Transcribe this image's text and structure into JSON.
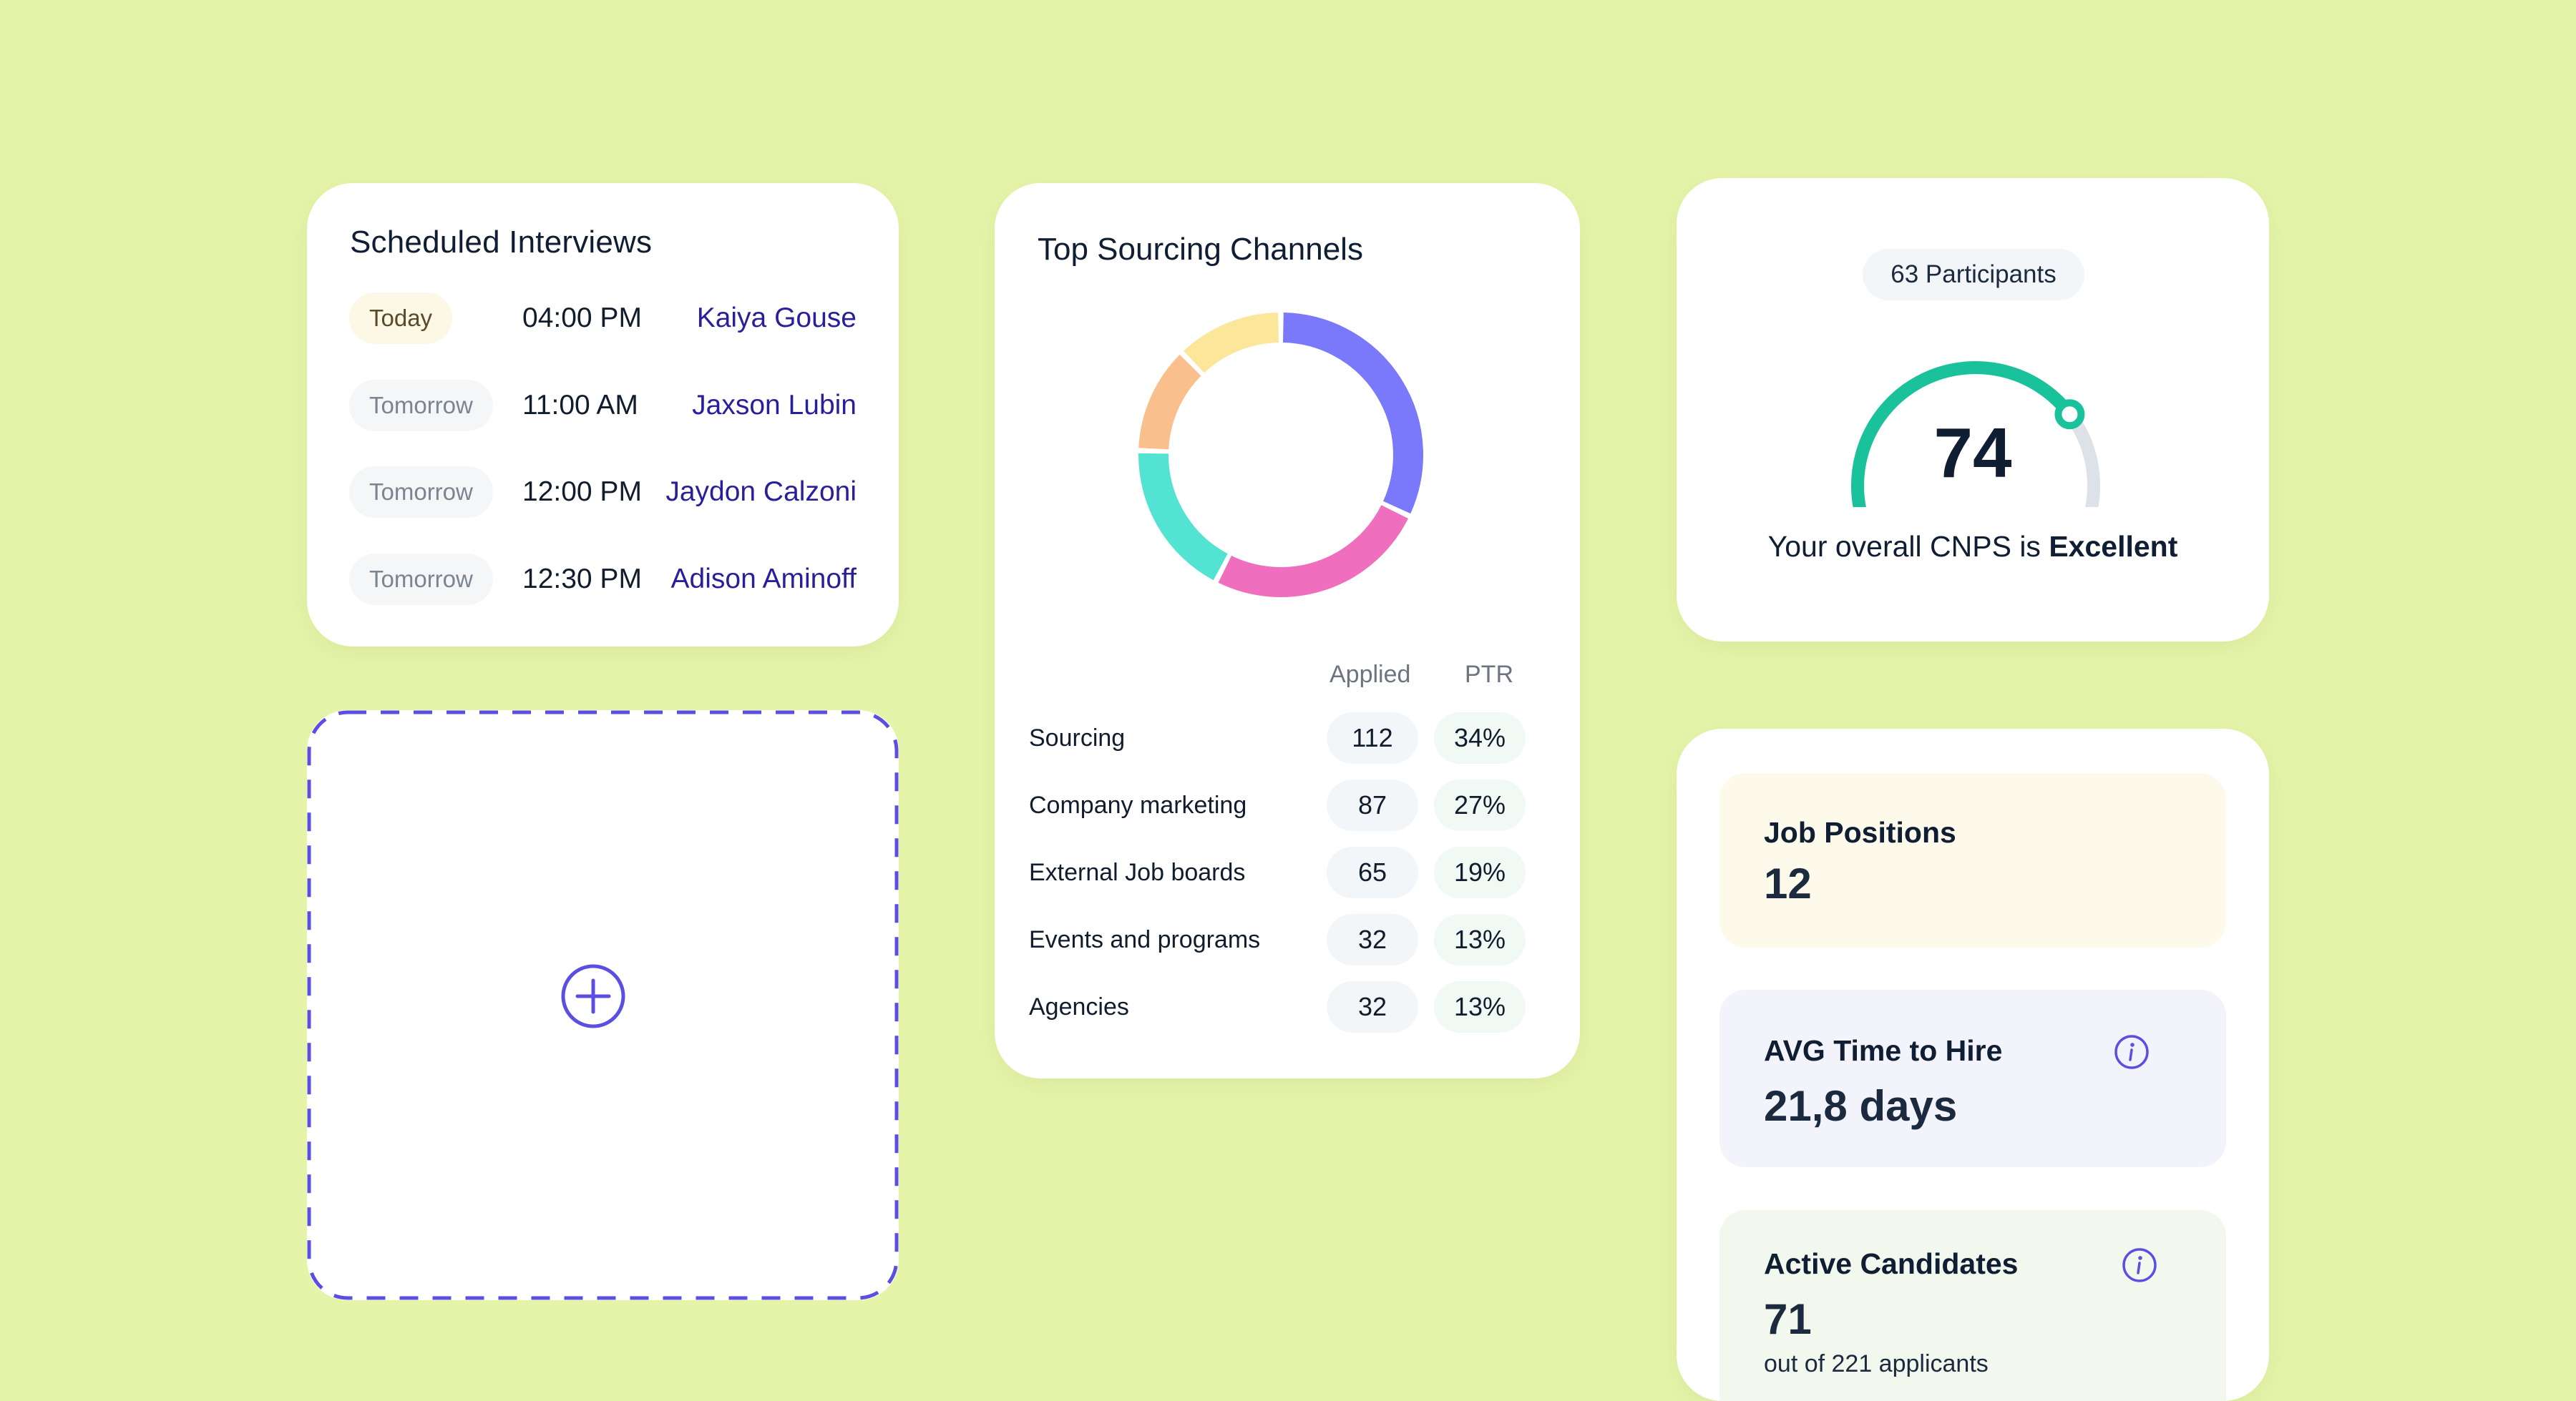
{
  "interviews": {
    "title": "Scheduled Interviews",
    "rows": [
      {
        "day": "Today",
        "time": "04:00 PM",
        "name": "Kaiya Gouse"
      },
      {
        "day": "Tomorrow",
        "time": "11:00 AM",
        "name": "Jaxson Lubin"
      },
      {
        "day": "Tomorrow",
        "time": "12:00 PM",
        "name": "Jaydon Calzoni"
      },
      {
        "day": "Tomorrow",
        "time": "12:30 PM",
        "name": "Adison Aminoff"
      }
    ]
  },
  "add_widget": {
    "icon": "plus-circle-icon",
    "border_color": "#5a4fe0"
  },
  "sourcing": {
    "title": "Top Sourcing Channels",
    "headers": {
      "applied": "Applied",
      "ptr": "PTR"
    },
    "channels": [
      {
        "name": "Sourcing",
        "applied": "112",
        "ptr": "34%"
      },
      {
        "name": "Company marketing",
        "applied": "87",
        "ptr": "27%"
      },
      {
        "name": "External Job boards",
        "applied": "65",
        "ptr": "19%"
      },
      {
        "name": "Events and programs",
        "applied": "32",
        "ptr": "13%"
      },
      {
        "name": "Agencies",
        "applied": "32",
        "ptr": "13%"
      }
    ]
  },
  "chart_data": {
    "type": "pie",
    "categories": [
      "Sourcing",
      "Company marketing",
      "External Job boards",
      "Events and programs",
      "Agencies"
    ],
    "values": [
      34,
      27,
      19,
      13,
      13
    ],
    "colors": [
      "#7a78fb",
      "#ef6fbe",
      "#52e3d2",
      "#f9c08e",
      "#fbe69a"
    ],
    "title": "Top Sourcing Channels"
  },
  "cnps": {
    "participants": "63 Participants",
    "score": "74",
    "score_value": 74,
    "caption_prefix": "Your overall CNPS is ",
    "caption_rating": "Excellent",
    "gauge_color": "#19c29b",
    "gauge_track_color": "#dde2e8"
  },
  "metrics": {
    "job_positions": {
      "label": "Job Positions",
      "value": "12"
    },
    "avg_time": {
      "label": "AVG Time to Hire",
      "value": "21,8 days",
      "icon": "info-icon"
    },
    "active_candidates": {
      "label": "Active Candidates",
      "value": "71",
      "sub": "out of 221 applicants",
      "icon": "info-icon"
    }
  }
}
